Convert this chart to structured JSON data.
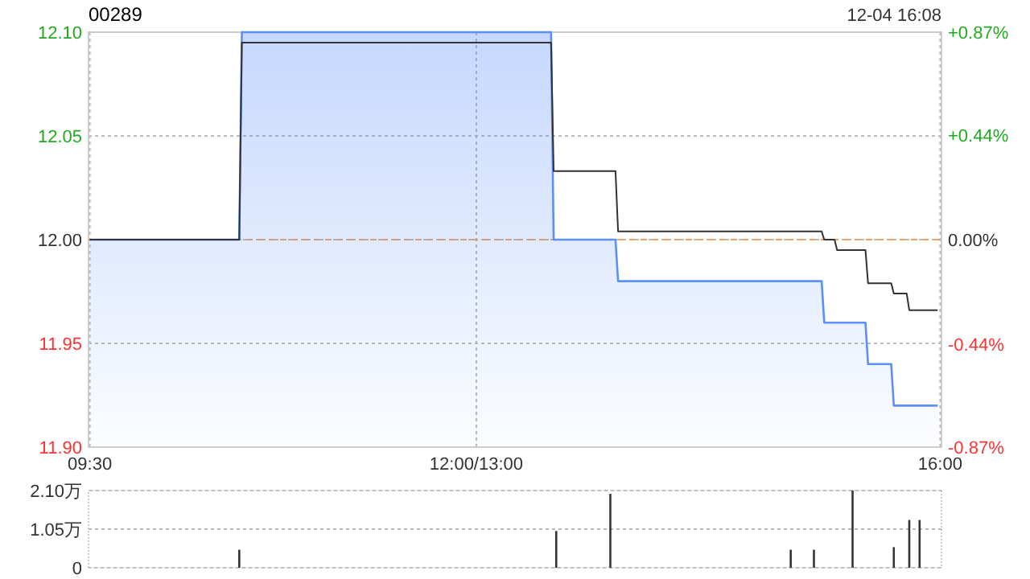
{
  "chart_data": [
    {
      "type": "line",
      "title": "00289",
      "annotations": [
        "12-04 16:08"
      ],
      "categories": [
        "09:30",
        null,
        null,
        null,
        null,
        null,
        null,
        null,
        null,
        null,
        null,
        null,
        null,
        null,
        null,
        null,
        null,
        null,
        null,
        null,
        null,
        null,
        null,
        null,
        null,
        null,
        null,
        null,
        null,
        null,
        null,
        null,
        null,
        null,
        null,
        null,
        null,
        null,
        null,
        null,
        null,
        null,
        null,
        null,
        null,
        null,
        null,
        null,
        null,
        null,
        null,
        null,
        null,
        null,
        null,
        null,
        null,
        null,
        null,
        null,
        null,
        null,
        null,
        null,
        null,
        null,
        null,
        null,
        null,
        null,
        null,
        null,
        null,
        null,
        null,
        null,
        null,
        null,
        null,
        null,
        null,
        null,
        null,
        null,
        null,
        null,
        null,
        null,
        null,
        null,
        null,
        null,
        null,
        null,
        null,
        null,
        null,
        null,
        null,
        null,
        null,
        null,
        null,
        null,
        null,
        null,
        null,
        null,
        null,
        null,
        null,
        null,
        null,
        null,
        null,
        null,
        null,
        null,
        null,
        null,
        null,
        null,
        null,
        null,
        null,
        null,
        null,
        null,
        null,
        null,
        null,
        null,
        null,
        null,
        null,
        null,
        null,
        null,
        null,
        null,
        null,
        null,
        null,
        null,
        null,
        null,
        null,
        null,
        null,
        null,
        "12:00/13:00",
        null,
        null,
        null,
        null,
        null,
        null,
        null,
        null,
        null,
        null,
        null,
        null,
        null,
        null,
        null,
        null,
        null,
        null,
        null,
        null,
        null,
        null,
        null,
        null,
        null,
        null,
        null,
        null,
        null,
        null,
        null,
        null,
        null,
        null,
        null,
        null,
        null,
        null,
        null,
        null,
        null,
        null,
        null,
        null,
        null,
        null,
        null,
        null,
        null,
        null,
        null,
        null,
        null,
        null,
        null,
        null,
        null,
        null,
        null,
        null,
        null,
        null,
        null,
        null,
        null,
        null,
        null,
        null,
        null,
        null,
        null,
        null,
        null,
        null,
        null,
        null,
        null,
        null,
        null,
        null,
        null,
        null,
        null,
        null,
        null,
        null,
        null,
        null,
        null,
        null,
        null,
        null,
        null,
        null,
        null,
        null,
        null,
        null,
        null,
        null,
        null,
        null,
        null,
        null,
        null,
        null,
        null,
        null,
        null,
        null,
        null,
        null,
        null,
        null,
        null,
        null,
        null,
        null,
        null,
        null,
        null,
        null,
        null,
        null,
        null,
        null,
        null,
        null,
        null,
        null,
        null,
        null,
        null,
        null,
        null,
        null,
        null,
        null,
        null,
        null,
        null,
        null,
        null,
        null,
        null,
        null,
        null,
        null,
        null,
        null,
        null,
        null,
        null,
        null,
        null,
        null,
        null,
        null,
        null,
        null,
        null,
        null,
        null,
        null,
        null,
        null,
        null,
        null,
        null,
        null,
        null,
        null,
        null,
        null,
        null,
        null,
        null,
        null,
        null,
        "16:00"
      ],
      "ylim": [
        11.9,
        12.1
      ],
      "yticks": [
        {
          "value": 11.9,
          "label": "11.90"
        },
        {
          "value": 11.95,
          "label": "11.95"
        },
        {
          "value": 12.0,
          "label": "12.00"
        },
        {
          "value": 12.05,
          "label": "12.05"
        },
        {
          "value": 12.1,
          "label": "12.10"
        }
      ],
      "y2lim": [
        -0.87,
        0.87
      ],
      "y2ticks": [
        {
          "value": -0.87,
          "label": "-0.87%"
        },
        {
          "value": -0.44,
          "label": "-0.44%"
        },
        {
          "value": 0,
          "label": "0.00%"
        },
        {
          "value": 0.44,
          "label": "+0.44%"
        },
        {
          "value": 0.87,
          "label": "+0.87%"
        }
      ],
      "grid": true,
      "ref_lines": [
        {
          "axis": "y",
          "value": 12.0,
          "color": "#f0a060",
          "line_style": "dashed"
        }
      ],
      "series": [
        {
          "type": "area",
          "color": "#5b8ff9",
          "values": [
            12.0,
            12.0,
            12.0,
            12.0,
            12.0,
            12.0,
            12.0,
            12.0,
            12.0,
            12.0,
            12.0,
            12.0,
            12.0,
            12.0,
            12.0,
            12.0,
            12.0,
            12.0,
            12.0,
            12.0,
            12.0,
            12.0,
            12.0,
            12.0,
            12.0,
            12.0,
            12.0,
            12.0,
            12.0,
            12.0,
            12.0,
            12.0,
            12.0,
            12.0,
            12.0,
            12.0,
            12.0,
            12.0,
            12.0,
            12.0,
            12.0,
            12.0,
            12.0,
            12.0,
            12.0,
            12.0,
            12.0,
            12.0,
            12.0,
            12.0,
            12.0,
            12.0,
            12.0,
            12.0,
            12.0,
            12.0,
            12.0,
            12.0,
            12.0,
            12.1,
            12.1,
            12.1,
            12.1,
            12.1,
            12.1,
            12.1,
            12.1,
            12.1,
            12.1,
            12.1,
            12.1,
            12.1,
            12.1,
            12.1,
            12.1,
            12.1,
            12.1,
            12.1,
            12.1,
            12.1,
            12.1,
            12.1,
            12.1,
            12.1,
            12.1,
            12.1,
            12.1,
            12.1,
            12.1,
            12.1,
            12.1,
            12.1,
            12.1,
            12.1,
            12.1,
            12.1,
            12.1,
            12.1,
            12.1,
            12.1,
            12.1,
            12.1,
            12.1,
            12.1,
            12.1,
            12.1,
            12.1,
            12.1,
            12.1,
            12.1,
            12.1,
            12.1,
            12.1,
            12.1,
            12.1,
            12.1,
            12.1,
            12.1,
            12.1,
            12.1,
            12.1,
            12.1,
            12.1,
            12.1,
            12.1,
            12.1,
            12.1,
            12.1,
            12.1,
            12.1,
            12.1,
            12.1,
            12.1,
            12.1,
            12.1,
            12.1,
            12.1,
            12.1,
            12.1,
            12.1,
            12.1,
            12.1,
            12.1,
            12.1,
            12.1,
            12.1,
            12.1,
            12.1,
            12.1,
            12.1,
            12.1,
            12.1,
            12.1,
            12.1,
            12.1,
            12.1,
            12.1,
            12.1,
            12.1,
            12.1,
            12.1,
            12.1,
            12.1,
            12.1,
            12.1,
            12.1,
            12.1,
            12.1,
            12.1,
            12.1,
            12.1,
            12.1,
            12.1,
            12.1,
            12.1,
            12.1,
            12.1,
            12.1,
            12.1,
            12.1,
            12.0,
            12.0,
            12.0,
            12.0,
            12.0,
            12.0,
            12.0,
            12.0,
            12.0,
            12.0,
            12.0,
            12.0,
            12.0,
            12.0,
            12.0,
            12.0,
            12.0,
            12.0,
            12.0,
            12.0,
            12.0,
            12.0,
            12.0,
            12.0,
            12.0,
            11.98,
            11.98,
            11.98,
            11.98,
            11.98,
            11.98,
            11.98,
            11.98,
            11.98,
            11.98,
            11.98,
            11.98,
            11.98,
            11.98,
            11.98,
            11.98,
            11.98,
            11.98,
            11.98,
            11.98,
            11.98,
            11.98,
            11.98,
            11.98,
            11.98,
            11.98,
            11.98,
            11.98,
            11.98,
            11.98,
            11.98,
            11.98,
            11.98,
            11.98,
            11.98,
            11.98,
            11.98,
            11.98,
            11.98,
            11.98,
            11.98,
            11.98,
            11.98,
            11.98,
            11.98,
            11.98,
            11.98,
            11.98,
            11.98,
            11.98,
            11.98,
            11.98,
            11.98,
            11.98,
            11.98,
            11.98,
            11.98,
            11.98,
            11.98,
            11.98,
            11.98,
            11.98,
            11.98,
            11.98,
            11.98,
            11.98,
            11.98,
            11.98,
            11.98,
            11.98,
            11.98,
            11.98,
            11.98,
            11.98,
            11.98,
            11.98,
            11.98,
            11.98,
            11.98,
            11.98,
            11.96,
            11.96,
            11.96,
            11.96,
            11.96,
            11.96,
            11.96,
            11.96,
            11.96,
            11.96,
            11.96,
            11.96,
            11.96,
            11.96,
            11.96,
            11.96,
            11.96,
            11.94,
            11.94,
            11.94,
            11.94,
            11.94,
            11.94,
            11.94,
            11.94,
            11.94,
            11.94,
            11.92,
            11.92,
            11.92,
            11.92,
            11.92,
            11.92,
            11.92,
            11.92,
            11.92,
            11.92,
            11.92,
            11.92,
            11.92,
            11.92,
            11.92,
            11.92,
            11.92,
            11.92,
            null
          ]
        },
        {
          "color": "#333333",
          "values": [
            12.0,
            12.0,
            12.0,
            12.0,
            12.0,
            12.0,
            12.0,
            12.0,
            12.0,
            12.0,
            12.0,
            12.0,
            12.0,
            12.0,
            12.0,
            12.0,
            12.0,
            12.0,
            12.0,
            12.0,
            12.0,
            12.0,
            12.0,
            12.0,
            12.0,
            12.0,
            12.0,
            12.0,
            12.0,
            12.0,
            12.0,
            12.0,
            12.0,
            12.0,
            12.0,
            12.0,
            12.0,
            12.0,
            12.0,
            12.0,
            12.0,
            12.0,
            12.0,
            12.0,
            12.0,
            12.0,
            12.0,
            12.0,
            12.0,
            12.0,
            12.0,
            12.0,
            12.0,
            12.0,
            12.0,
            12.0,
            12.0,
            12.0,
            12.0,
            12.095,
            12.095,
            12.095,
            12.095,
            12.095,
            12.095,
            12.095,
            12.095,
            12.095,
            12.095,
            12.095,
            12.095,
            12.095,
            12.095,
            12.095,
            12.095,
            12.095,
            12.095,
            12.095,
            12.095,
            12.095,
            12.095,
            12.095,
            12.095,
            12.095,
            12.095,
            12.095,
            12.095,
            12.095,
            12.095,
            12.095,
            12.095,
            12.095,
            12.095,
            12.095,
            12.095,
            12.095,
            12.095,
            12.095,
            12.095,
            12.095,
            12.095,
            12.095,
            12.095,
            12.095,
            12.095,
            12.095,
            12.095,
            12.095,
            12.095,
            12.095,
            12.095,
            12.095,
            12.095,
            12.095,
            12.095,
            12.095,
            12.095,
            12.095,
            12.095,
            12.095,
            12.095,
            12.095,
            12.095,
            12.095,
            12.095,
            12.095,
            12.095,
            12.095,
            12.095,
            12.095,
            12.095,
            12.095,
            12.095,
            12.095,
            12.095,
            12.095,
            12.095,
            12.095,
            12.095,
            12.095,
            12.095,
            12.095,
            12.095,
            12.095,
            12.095,
            12.095,
            12.095,
            12.095,
            12.095,
            12.095,
            12.095,
            12.095,
            12.095,
            12.095,
            12.095,
            12.095,
            12.095,
            12.095,
            12.095,
            12.095,
            12.095,
            12.095,
            12.095,
            12.095,
            12.095,
            12.095,
            12.095,
            12.095,
            12.095,
            12.095,
            12.095,
            12.095,
            12.095,
            12.095,
            12.095,
            12.095,
            12.095,
            12.095,
            12.095,
            12.095,
            12.033,
            12.033,
            12.033,
            12.033,
            12.033,
            12.033,
            12.033,
            12.033,
            12.033,
            12.033,
            12.033,
            12.033,
            12.033,
            12.033,
            12.033,
            12.033,
            12.033,
            12.033,
            12.033,
            12.033,
            12.033,
            12.033,
            12.033,
            12.033,
            12.033,
            12.004,
            12.004,
            12.004,
            12.004,
            12.004,
            12.004,
            12.004,
            12.004,
            12.004,
            12.004,
            12.004,
            12.004,
            12.004,
            12.004,
            12.004,
            12.004,
            12.004,
            12.004,
            12.004,
            12.004,
            12.004,
            12.004,
            12.004,
            12.004,
            12.004,
            12.004,
            12.004,
            12.004,
            12.004,
            12.004,
            12.004,
            12.004,
            12.004,
            12.004,
            12.004,
            12.004,
            12.004,
            12.004,
            12.004,
            12.004,
            12.004,
            12.004,
            12.004,
            12.004,
            12.004,
            12.004,
            12.004,
            12.004,
            12.004,
            12.004,
            12.004,
            12.004,
            12.004,
            12.004,
            12.004,
            12.004,
            12.004,
            12.004,
            12.004,
            12.004,
            12.004,
            12.004,
            12.004,
            12.004,
            12.004,
            12.004,
            12.004,
            12.004,
            12.004,
            12.004,
            12.004,
            12.004,
            12.004,
            12.004,
            12.004,
            12.004,
            12.004,
            12.004,
            12.004,
            12.004,
            12.0,
            12.0,
            12.0,
            12.0,
            12.0,
            11.995,
            11.995,
            11.995,
            11.995,
            11.995,
            11.995,
            11.995,
            11.995,
            11.995,
            11.995,
            11.995,
            11.995,
            11.979,
            11.979,
            11.979,
            11.979,
            11.979,
            11.979,
            11.979,
            11.979,
            11.979,
            11.979,
            11.974,
            11.974,
            11.974,
            11.974,
            11.974,
            11.974,
            11.966,
            11.966,
            11.966,
            11.966,
            11.966,
            11.966,
            11.966,
            11.966,
            11.966,
            11.966,
            11.966,
            11.966,
            null
          ]
        }
      ]
    },
    {
      "type": "bar",
      "color": "#333333",
      "tick_labels": "y",
      "grid": "y",
      "categories": [
        null,
        null,
        null,
        null,
        null,
        null,
        null,
        null,
        null,
        null,
        null,
        null,
        null,
        null,
        null,
        null,
        null,
        null,
        null,
        null,
        null,
        null,
        null,
        null,
        null,
        null,
        null,
        null,
        null,
        null,
        null,
        null,
        null,
        null,
        null,
        null,
        null,
        null,
        null,
        null,
        null,
        null,
        null,
        null,
        null,
        null,
        null,
        null,
        null,
        null,
        null,
        null,
        null,
        null,
        null,
        null,
        null,
        null,
        null,
        null,
        null,
        null,
        null,
        null,
        null,
        null,
        null,
        null,
        null,
        null,
        null,
        null,
        null,
        null,
        null,
        null,
        null,
        null,
        null,
        null,
        null,
        null,
        null,
        null,
        null,
        null,
        null,
        null,
        null,
        null,
        null,
        null,
        null,
        null,
        null,
        null,
        null,
        null,
        null,
        null,
        null,
        null,
        null,
        null,
        null,
        null,
        null,
        null,
        null,
        null,
        null,
        null,
        null,
        null,
        null,
        null,
        null,
        null,
        null,
        null,
        null,
        null,
        null,
        null,
        null,
        null,
        null,
        null,
        null,
        null,
        null,
        null,
        null,
        null,
        null,
        null,
        null,
        null,
        null,
        null,
        null,
        null,
        null,
        null,
        null,
        null,
        null,
        null,
        null,
        null,
        null,
        null,
        null,
        null,
        null,
        null,
        null,
        null,
        null,
        null,
        null,
        null,
        null,
        null,
        null,
        null,
        null,
        null,
        null,
        null,
        null,
        null,
        null,
        null,
        null,
        null,
        null,
        null,
        null,
        null,
        null,
        null,
        null,
        null,
        null,
        null,
        null,
        null,
        null,
        null,
        null,
        null,
        null,
        null,
        null,
        null,
        null,
        null,
        null,
        null,
        null,
        null,
        null,
        null,
        null,
        null,
        null,
        null,
        null,
        null,
        null,
        null,
        null,
        null,
        null,
        null,
        null,
        null,
        null,
        null,
        null,
        null,
        null,
        null,
        null,
        null,
        null,
        null,
        null,
        null,
        null,
        null,
        null,
        null,
        null,
        null,
        null,
        null,
        null,
        null,
        null,
        null,
        null,
        null,
        null,
        null,
        null,
        null,
        null,
        null,
        null,
        null,
        null,
        null,
        null,
        null,
        null,
        null,
        null,
        null,
        null,
        null,
        null,
        null,
        null,
        null,
        null,
        null,
        null,
        null,
        null,
        null,
        null,
        null,
        null,
        null,
        null,
        null,
        null,
        null,
        null,
        null,
        null,
        null,
        null,
        null,
        null,
        null,
        null,
        null,
        null,
        null,
        null,
        null,
        null,
        null,
        null,
        null,
        null,
        null,
        null,
        null,
        null,
        null,
        null,
        null,
        null,
        null,
        null,
        null,
        null,
        null,
        null,
        null,
        null,
        null,
        null,
        null,
        null,
        null,
        null,
        null,
        null,
        null,
        null,
        null,
        null,
        null,
        null,
        null,
        null
      ],
      "ylim": [
        0,
        2.1
      ],
      "yticks": [
        {
          "value": 0,
          "label": "0"
        },
        {
          "value": 1.05,
          "label": "1.05万"
        },
        {
          "value": 2.1,
          "label": "2.10万"
        }
      ],
      "values": [
        null,
        null,
        null,
        null,
        null,
        null,
        null,
        null,
        null,
        null,
        null,
        null,
        null,
        null,
        null,
        null,
        null,
        null,
        null,
        null,
        null,
        null,
        null,
        null,
        null,
        null,
        null,
        null,
        null,
        null,
        null,
        null,
        null,
        null,
        null,
        null,
        null,
        null,
        null,
        null,
        null,
        null,
        null,
        null,
        null,
        null,
        null,
        null,
        null,
        null,
        null,
        null,
        null,
        null,
        null,
        null,
        null,
        null,
        0.49,
        null,
        null,
        null,
        null,
        null,
        null,
        null,
        null,
        null,
        null,
        null,
        null,
        null,
        null,
        null,
        null,
        null,
        null,
        null,
        null,
        null,
        null,
        null,
        null,
        null,
        null,
        null,
        null,
        null,
        null,
        null,
        null,
        null,
        null,
        null,
        null,
        null,
        null,
        null,
        null,
        null,
        null,
        null,
        null,
        null,
        null,
        null,
        null,
        null,
        null,
        null,
        null,
        null,
        null,
        null,
        null,
        null,
        null,
        null,
        null,
        null,
        null,
        null,
        null,
        null,
        null,
        null,
        null,
        null,
        null,
        null,
        null,
        null,
        null,
        null,
        null,
        null,
        null,
        null,
        null,
        null,
        null,
        null,
        null,
        null,
        null,
        null,
        null,
        null,
        null,
        null,
        null,
        null,
        null,
        null,
        null,
        null,
        null,
        null,
        null,
        null,
        null,
        null,
        null,
        null,
        null,
        null,
        null,
        null,
        null,
        null,
        null,
        null,
        null,
        null,
        null,
        null,
        null,
        null,
        null,
        null,
        null,
        1.0,
        null,
        null,
        null,
        null,
        null,
        null,
        null,
        null,
        null,
        null,
        null,
        null,
        null,
        null,
        null,
        null,
        null,
        null,
        null,
        null,
        2.01,
        null,
        null,
        null,
        null,
        null,
        null,
        null,
        null,
        null,
        null,
        null,
        null,
        null,
        null,
        null,
        null,
        null,
        null,
        null,
        null,
        null,
        null,
        null,
        null,
        null,
        null,
        null,
        null,
        null,
        null,
        null,
        null,
        null,
        null,
        null,
        null,
        null,
        null,
        null,
        null,
        null,
        null,
        null,
        null,
        null,
        null,
        null,
        null,
        null,
        null,
        null,
        null,
        null,
        null,
        null,
        null,
        null,
        null,
        null,
        null,
        null,
        null,
        null,
        null,
        null,
        null,
        null,
        null,
        null,
        0.49,
        null,
        null,
        null,
        null,
        null,
        null,
        null,
        null,
        0.49,
        null,
        null,
        null,
        null,
        null,
        null,
        null,
        null,
        null,
        null,
        null,
        null,
        null,
        null,
        2.1,
        null,
        null,
        null,
        null,
        null,
        null,
        null,
        null,
        null,
        null,
        null,
        null,
        null,
        null,
        null,
        0.56,
        null,
        null,
        null,
        null,
        null,
        1.3,
        null,
        null,
        null,
        1.3,
        null,
        null,
        null,
        null,
        null,
        null,
        null,
        null
      ]
    }
  ]
}
